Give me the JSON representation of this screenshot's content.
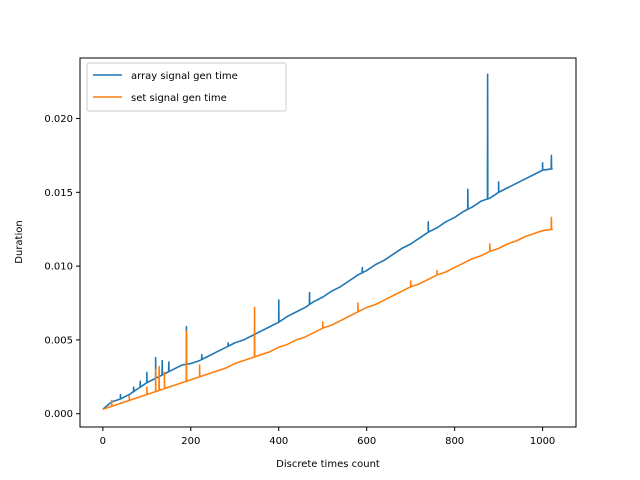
{
  "chart_data": {
    "type": "line",
    "title": "",
    "xlabel": "Discrete times count",
    "ylabel": "Duration",
    "xlim": [
      -52,
      1076
    ],
    "ylim": [
      -0.0009,
      0.0241
    ],
    "xticks": [
      0,
      200,
      400,
      600,
      800,
      1000
    ],
    "xtick_labels": [
      "0",
      "200",
      "400",
      "600",
      "800",
      "1000"
    ],
    "yticks": [
      0.0,
      0.005,
      0.01,
      0.015,
      0.02
    ],
    "ytick_labels": [
      "0.000",
      "0.005",
      "0.010",
      "0.015",
      "0.020"
    ],
    "grid": false,
    "legend_position": "top-left",
    "series": [
      {
        "name": "array signal gen time",
        "color": "#1f77b4",
        "x": [
          0,
          20,
          40,
          60,
          80,
          100,
          120,
          140,
          160,
          180,
          200,
          220,
          240,
          260,
          280,
          300,
          320,
          340,
          360,
          380,
          400,
          420,
          440,
          460,
          480,
          500,
          520,
          540,
          560,
          580,
          600,
          620,
          640,
          660,
          680,
          700,
          720,
          740,
          760,
          780,
          800,
          820,
          840,
          860,
          880,
          900,
          920,
          940,
          960,
          980,
          1000,
          1023
        ],
        "y": [
          0.0003,
          0.0008,
          0.001,
          0.0013,
          0.0017,
          0.0021,
          0.0024,
          0.0027,
          0.003,
          0.0033,
          0.0034,
          0.0036,
          0.0039,
          0.0042,
          0.0045,
          0.0048,
          0.005,
          0.0053,
          0.0056,
          0.0059,
          0.0062,
          0.0066,
          0.0069,
          0.0072,
          0.0076,
          0.0079,
          0.0083,
          0.0086,
          0.009,
          0.0094,
          0.0097,
          0.0101,
          0.0104,
          0.0108,
          0.0112,
          0.0115,
          0.0119,
          0.0123,
          0.0126,
          0.013,
          0.0133,
          0.0137,
          0.014,
          0.0144,
          0.0146,
          0.015,
          0.0153,
          0.0156,
          0.0159,
          0.0162,
          0.0165,
          0.0166
        ],
        "spikes": [
          {
            "x": 40,
            "y": 0.0013
          },
          {
            "x": 70,
            "y": 0.0018
          },
          {
            "x": 85,
            "y": 0.0022
          },
          {
            "x": 100,
            "y": 0.0028
          },
          {
            "x": 120,
            "y": 0.0038
          },
          {
            "x": 135,
            "y": 0.0036
          },
          {
            "x": 150,
            "y": 0.0035
          },
          {
            "x": 190,
            "y": 0.0059
          },
          {
            "x": 225,
            "y": 0.004
          },
          {
            "x": 285,
            "y": 0.0048
          },
          {
            "x": 400,
            "y": 0.0077
          },
          {
            "x": 470,
            "y": 0.0082
          },
          {
            "x": 590,
            "y": 0.0099
          },
          {
            "x": 740,
            "y": 0.013
          },
          {
            "x": 830,
            "y": 0.0152
          },
          {
            "x": 875,
            "y": 0.023
          },
          {
            "x": 900,
            "y": 0.0157
          },
          {
            "x": 1000,
            "y": 0.017
          },
          {
            "x": 1020,
            "y": 0.0175
          }
        ]
      },
      {
        "name": "set signal gen time",
        "color": "#ff7f0e",
        "x": [
          0,
          20,
          40,
          60,
          80,
          100,
          120,
          140,
          160,
          180,
          200,
          220,
          240,
          260,
          280,
          300,
          320,
          340,
          360,
          380,
          400,
          420,
          440,
          460,
          480,
          500,
          520,
          540,
          560,
          580,
          600,
          620,
          640,
          660,
          680,
          700,
          720,
          740,
          760,
          780,
          800,
          820,
          840,
          860,
          880,
          900,
          920,
          940,
          960,
          980,
          1000,
          1023
        ],
        "y": [
          0.0003,
          0.0005,
          0.0007,
          0.0009,
          0.0011,
          0.0013,
          0.0015,
          0.0017,
          0.0019,
          0.0021,
          0.0023,
          0.0025,
          0.0027,
          0.0029,
          0.0031,
          0.0034,
          0.0036,
          0.0038,
          0.004,
          0.0042,
          0.0045,
          0.0047,
          0.005,
          0.0052,
          0.0055,
          0.0058,
          0.006,
          0.0063,
          0.0066,
          0.0069,
          0.0072,
          0.0074,
          0.0077,
          0.008,
          0.0083,
          0.0086,
          0.0088,
          0.0091,
          0.0094,
          0.0096,
          0.0099,
          0.0102,
          0.0105,
          0.0107,
          0.011,
          0.0112,
          0.0115,
          0.0117,
          0.012,
          0.0122,
          0.0124,
          0.0125
        ],
        "spikes": [
          {
            "x": 20,
            "y": 0.0009
          },
          {
            "x": 60,
            "y": 0.0012
          },
          {
            "x": 100,
            "y": 0.0018
          },
          {
            "x": 120,
            "y": 0.003
          },
          {
            "x": 128,
            "y": 0.0032
          },
          {
            "x": 140,
            "y": 0.0028
          },
          {
            "x": 190,
            "y": 0.0056
          },
          {
            "x": 220,
            "y": 0.0033
          },
          {
            "x": 345,
            "y": 0.0072
          },
          {
            "x": 500,
            "y": 0.0062
          },
          {
            "x": 580,
            "y": 0.0075
          },
          {
            "x": 700,
            "y": 0.009
          },
          {
            "x": 760,
            "y": 0.0097
          },
          {
            "x": 880,
            "y": 0.0115
          },
          {
            "x": 1020,
            "y": 0.0133
          }
        ]
      }
    ]
  }
}
